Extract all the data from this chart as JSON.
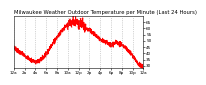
{
  "title": "Milwaukee Weather Outdoor Temperature per Minute (Last 24 Hours)",
  "line_color": "#ff0000",
  "bg_color": "#ffffff",
  "grid_color": "#888888",
  "ylim": [
    28,
    70
  ],
  "yticks": [
    30,
    35,
    40,
    45,
    50,
    55,
    60,
    65
  ],
  "num_points": 1440,
  "title_fontsize": 3.8,
  "tick_fontsize": 3.0,
  "curve": [
    [
      0,
      45
    ],
    [
      0.5,
      43
    ],
    [
      1.0,
      41
    ],
    [
      1.5,
      40
    ],
    [
      2.0,
      38
    ],
    [
      2.5,
      37
    ],
    [
      3.0,
      35
    ],
    [
      3.5,
      34
    ],
    [
      4.0,
      33
    ],
    [
      4.5,
      34
    ],
    [
      5.0,
      35
    ],
    [
      5.5,
      37
    ],
    [
      6.0,
      40
    ],
    [
      6.5,
      43
    ],
    [
      7.0,
      47
    ],
    [
      7.5,
      50
    ],
    [
      8.0,
      53
    ],
    [
      8.5,
      56
    ],
    [
      9.0,
      59
    ],
    [
      9.5,
      61
    ],
    [
      10.0,
      63
    ],
    [
      10.5,
      64
    ],
    [
      11.0,
      65
    ],
    [
      11.25,
      66
    ],
    [
      11.5,
      67
    ],
    [
      11.75,
      65
    ],
    [
      12.0,
      63
    ],
    [
      12.25,
      64
    ],
    [
      12.5,
      65
    ],
    [
      12.75,
      63
    ],
    [
      13.0,
      61
    ],
    [
      13.5,
      60
    ],
    [
      14.0,
      59
    ],
    [
      14.5,
      57
    ],
    [
      15.0,
      55
    ],
    [
      15.5,
      53
    ],
    [
      16.0,
      51
    ],
    [
      16.5,
      50
    ],
    [
      17.0,
      49
    ],
    [
      17.5,
      48
    ],
    [
      18.0,
      47
    ],
    [
      18.5,
      48
    ],
    [
      19.0,
      49
    ],
    [
      19.5,
      48
    ],
    [
      20.0,
      47
    ],
    [
      20.5,
      45
    ],
    [
      21.0,
      43
    ],
    [
      21.5,
      41
    ],
    [
      22.0,
      38
    ],
    [
      22.5,
      35
    ],
    [
      23.0,
      32
    ],
    [
      23.5,
      30
    ],
    [
      24.0,
      28
    ]
  ]
}
